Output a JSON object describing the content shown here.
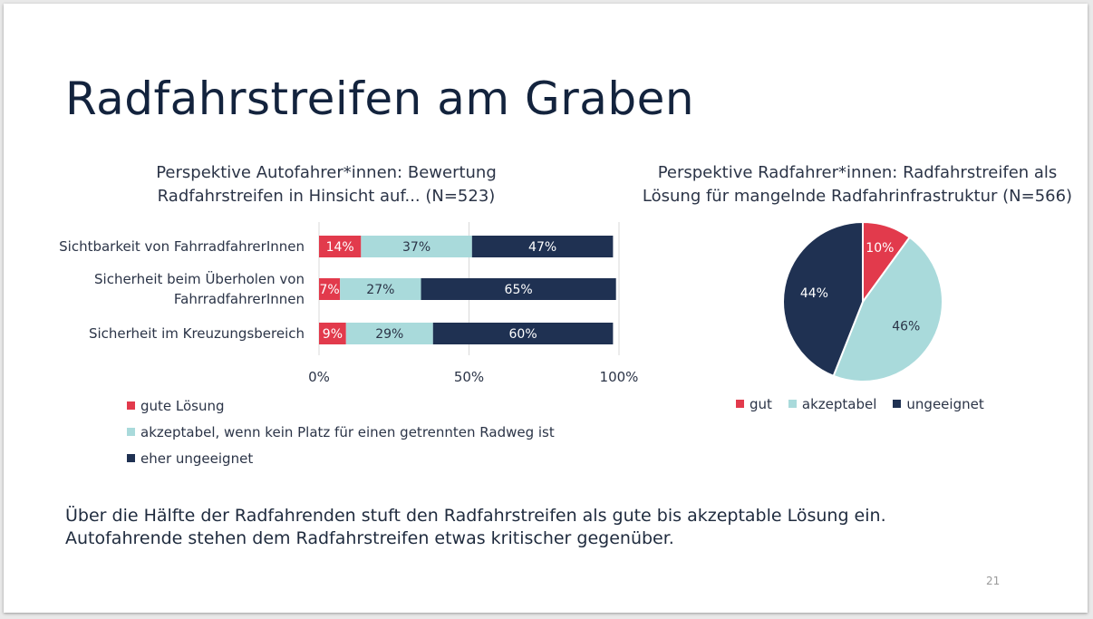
{
  "slide": {
    "title": "Radfahrstreifen am Graben",
    "summary_lines": [
      "Über die Hälfte der Radfahrenden stuft den Radfahrstreifen als gute bis akzeptable Lösung ein.",
      "Autofahrende stehen dem Radfahrstreifen etwas kritischer gegenüber."
    ],
    "page_number": "21"
  },
  "colors": {
    "red": "#e23a4c",
    "teal": "#a9dadb",
    "navy": "#1f3152"
  },
  "chart_data": [
    {
      "type": "bar",
      "orientation": "horizontal-stacked-100",
      "title": "Perspektive Autofahrer*innen: Bewertung\nRadfahrstreifen in Hinsicht auf... (N=523)",
      "categories": [
        [
          "Sichtbarkeit von FahrradfahrerInnen"
        ],
        [
          "Sicherheit beim Überholen von",
          "FahrradfahrerInnen"
        ],
        [
          "Sicherheit im Kreuzungsbereich"
        ]
      ],
      "series": [
        {
          "name": "gute Lösung",
          "color": "red",
          "values": [
            14,
            7,
            9
          ],
          "labels": [
            "14%",
            "7%",
            "9%"
          ]
        },
        {
          "name": "akzeptabel, wenn kein Platz für einen getrennten Radweg ist",
          "color": "teal",
          "values": [
            37,
            27,
            29
          ],
          "labels": [
            "37%",
            "27%",
            "29%"
          ]
        },
        {
          "name": "eher ungeeignet",
          "color": "navy",
          "values": [
            47,
            65,
            60
          ],
          "labels": [
            "47%",
            "65%",
            "60%"
          ]
        }
      ],
      "x_ticks": [
        "0%",
        "50%",
        "100%"
      ],
      "xlim": [
        0,
        100
      ],
      "grid": true,
      "legend_position": "bottom"
    },
    {
      "type": "pie",
      "title": "Perspektive Radfahrer*innen: Radfahrstreifen als\nLösung für mangelnde Radfahrinfrastruktur (N=566)",
      "slices": [
        {
          "name": "gut",
          "color": "red",
          "value": 10,
          "label": "10%"
        },
        {
          "name": "akzeptabel",
          "color": "teal",
          "value": 46,
          "label": "46%"
        },
        {
          "name": "ungeeignet",
          "color": "navy",
          "value": 44,
          "label": "44%"
        }
      ],
      "legend_position": "bottom"
    }
  ]
}
